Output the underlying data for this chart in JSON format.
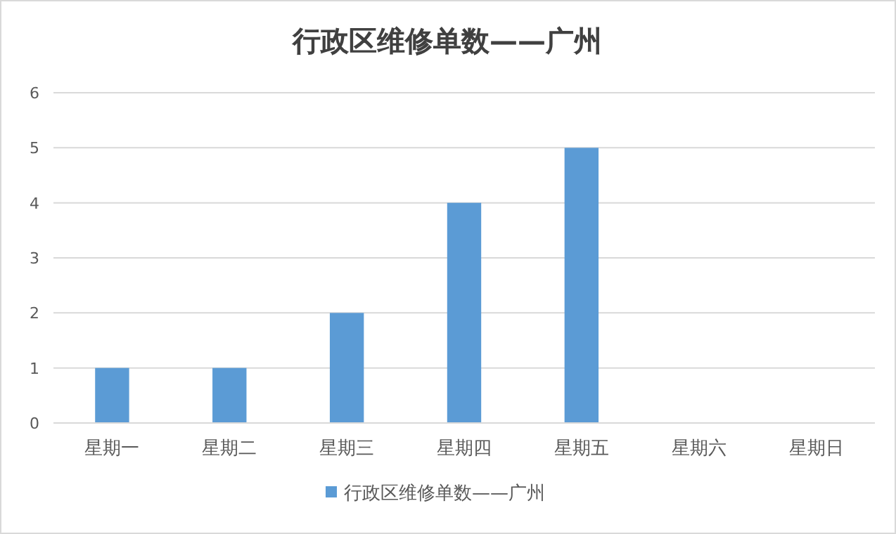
{
  "chart_data": {
    "type": "bar",
    "title": "行政区维修单数——广州",
    "categories": [
      "星期一",
      "星期二",
      "星期三",
      "星期四",
      "星期五",
      "星期六",
      "星期日"
    ],
    "series": [
      {
        "name": "行政区维修单数——广州",
        "color": "#5b9bd5",
        "values": [
          1,
          1,
          2,
          4,
          5,
          0,
          0
        ]
      }
    ],
    "ylim": [
      0,
      6
    ],
    "yticks": [
      0,
      1,
      2,
      3,
      4,
      5,
      6
    ],
    "grid": "y",
    "legend": "bottom"
  }
}
